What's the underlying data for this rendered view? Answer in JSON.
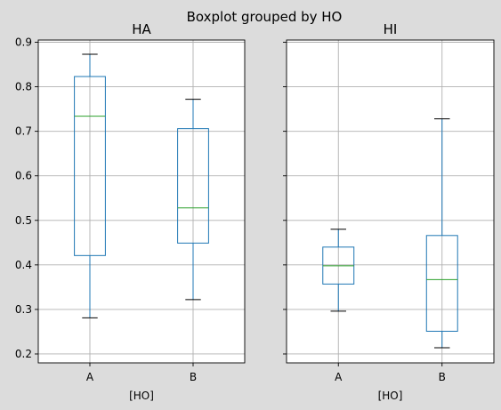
{
  "colors": {
    "background": "#dcdcdc",
    "axes_face": "#ffffff",
    "box": "#1f77b4",
    "median": "#2ca02c",
    "grid": "#b0b0b0",
    "text": "#000000"
  },
  "chart_data": [
    {
      "type": "box",
      "suptitle": "Boxplot grouped by HO",
      "title": "HA",
      "xlabel": "[HO]",
      "ylabel": "",
      "ylim": [
        0.18,
        0.905
      ],
      "yticks": [
        0.2,
        0.3,
        0.4,
        0.5,
        0.6,
        0.7,
        0.8,
        0.9
      ],
      "ytick_labels": [
        "0.2",
        "0.3",
        "0.4",
        "0.5",
        "0.6",
        "0.7",
        "0.8",
        "0.9"
      ],
      "grid": true,
      "categories": [
        "A",
        "B"
      ],
      "boxes": [
        {
          "whisker_low": 0.281,
          "q1": 0.421,
          "median": 0.734,
          "q3": 0.823,
          "whisker_high": 0.873
        },
        {
          "whisker_low": 0.322,
          "q1": 0.449,
          "median": 0.528,
          "q3": 0.706,
          "whisker_high": 0.772
        }
      ]
    },
    {
      "type": "box",
      "title": "HI",
      "xlabel": "[HO]",
      "ylabel": "",
      "ylim": [
        0.18,
        0.905
      ],
      "yticks": [
        0.2,
        0.3,
        0.4,
        0.5,
        0.6,
        0.7,
        0.8,
        0.9
      ],
      "ytick_labels": [
        "",
        "",
        "",
        "",
        "",
        "",
        "",
        ""
      ],
      "grid": true,
      "categories": [
        "A",
        "B"
      ],
      "boxes": [
        {
          "whisker_low": 0.296,
          "q1": 0.357,
          "median": 0.398,
          "q3": 0.44,
          "whisker_high": 0.48
        },
        {
          "whisker_low": 0.214,
          "q1": 0.251,
          "median": 0.367,
          "q3": 0.466,
          "whisker_high": 0.728
        }
      ]
    }
  ]
}
